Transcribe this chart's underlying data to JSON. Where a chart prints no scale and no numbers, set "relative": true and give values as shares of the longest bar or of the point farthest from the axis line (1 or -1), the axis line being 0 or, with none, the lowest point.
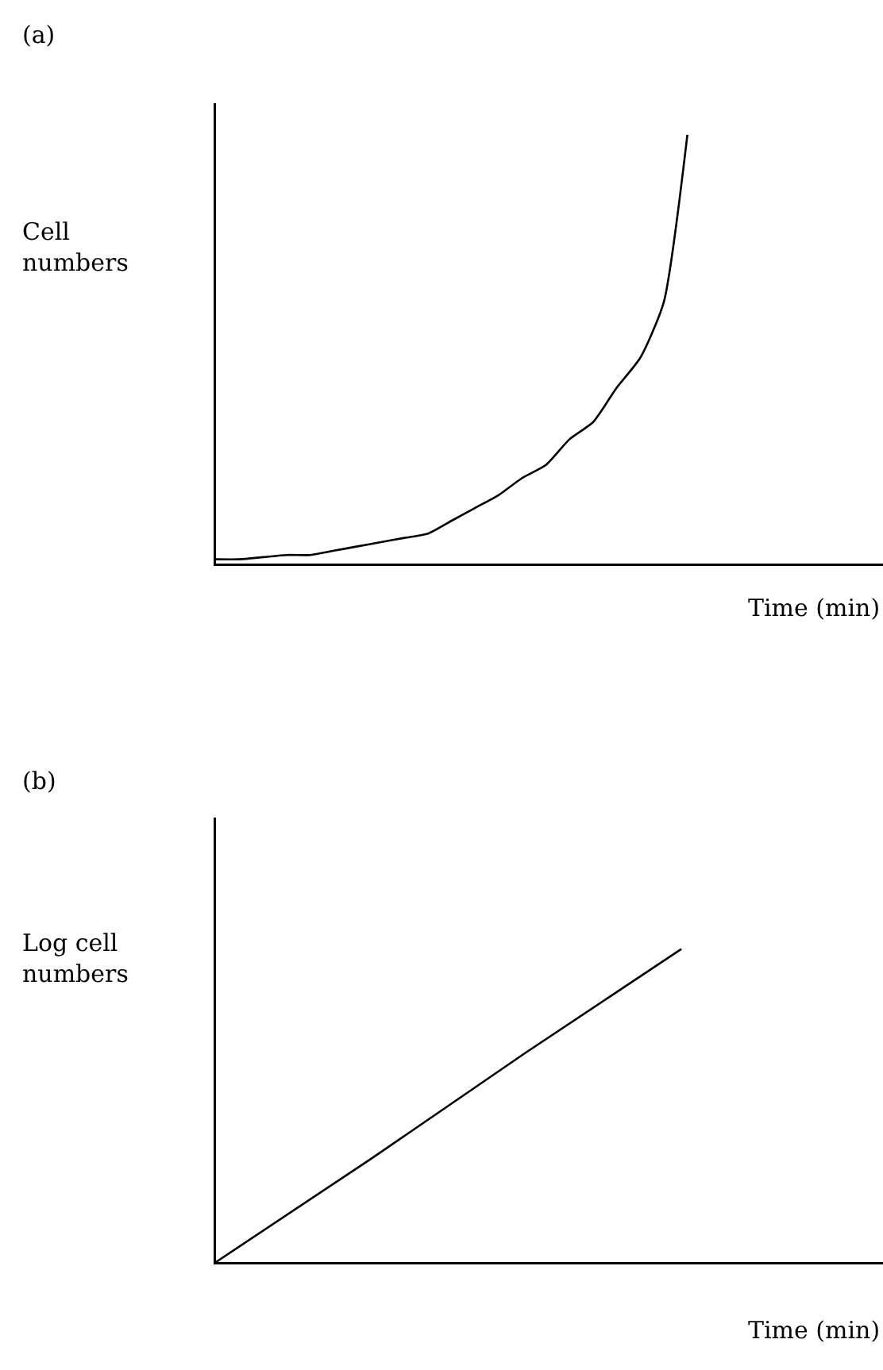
{
  "chart_data": [
    {
      "type": "line",
      "relative": true,
      "annotations": [
        "(a)"
      ],
      "xlabel": "Time (min)",
      "ylabel": "Cell numbers",
      "categories": [
        null,
        null,
        null,
        null,
        null,
        null,
        null,
        null,
        null,
        null,
        null,
        null,
        null,
        null,
        null,
        null,
        null,
        null,
        null,
        null,
        null,
        null,
        null,
        null,
        null,
        null,
        null,
        null,
        null
      ],
      "series": [
        {
          "color": "#000000",
          "values": [
            0.01,
            0.01,
            0.015,
            0.02,
            0.02,
            0.03,
            0.04,
            0.05,
            0.06,
            0.07,
            0.1,
            0.13,
            0.16,
            0.2,
            0.23,
            0.29,
            0.33,
            0.41,
            0.48,
            0.61,
            1,
            null,
            null,
            null,
            null,
            null,
            null,
            null,
            null
          ]
        }
      ]
    },
    {
      "type": "line",
      "relative": true,
      "annotations": [
        "(b)"
      ],
      "xlabel": "Time (min)",
      "ylabel": "Log cell numbers",
      "categories": [
        null,
        null,
        null,
        null,
        null
      ],
      "series": [
        {
          "color": "#000000",
          "values": [
            0,
            0.33,
            0.67,
            1,
            null
          ]
        }
      ]
    }
  ]
}
